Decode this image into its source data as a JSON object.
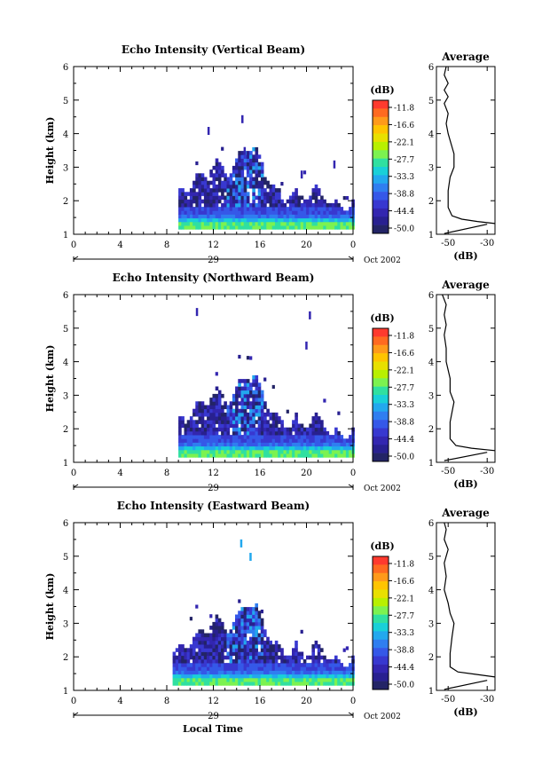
{
  "figure": {
    "date_label": "Oct 2002",
    "day_label": "29",
    "xlabel": "Local Time"
  },
  "chart_data": [
    {
      "type": "heatmap",
      "title": "Echo Intensity (Vertical Beam)",
      "ylabel": "Height (km)",
      "x_ticks": [
        "0",
        "4",
        "8",
        "12",
        "16",
        "20",
        "0"
      ],
      "x_range": [
        0,
        24
      ],
      "y_ticks": [
        "1",
        "2",
        "3",
        "4",
        "5",
        "6"
      ],
      "y_range": [
        1,
        6
      ],
      "data_start_hour": 9,
      "colorbar": {
        "unit": "(dB)",
        "labels": [
          "-11.8",
          "-16.6",
          "-22.1",
          "-27.7",
          "-33.3",
          "-38.8",
          "-44.4",
          "-50.0"
        ],
        "colors": [
          "#ff3a2e",
          "#ff6a20",
          "#ff9a1a",
          "#ffc400",
          "#e8e000",
          "#b8f000",
          "#7cf250",
          "#30e0a0",
          "#19d0d8",
          "#22a8ee",
          "#2f7ef0",
          "#3558e8",
          "#3838d0",
          "#3326b0",
          "#282090",
          "#232466"
        ]
      },
      "profile": {
        "title": "Average",
        "xlabel": "(dB)",
        "x_ticks": [
          "-50",
          "-30"
        ],
        "x_range": [
          -56,
          -26
        ],
        "points": [
          [
            -26,
            1.32
          ],
          [
            -35,
            1.38
          ],
          [
            -43,
            1.45
          ],
          [
            -48,
            1.55
          ],
          [
            -50,
            1.8
          ],
          [
            -50,
            2.3
          ],
          [
            -49,
            2.7
          ],
          [
            -47,
            3.0
          ],
          [
            -47,
            3.4
          ],
          [
            -49,
            3.8
          ],
          [
            -50,
            4.0
          ],
          [
            -51,
            4.3
          ],
          [
            -50,
            4.6
          ],
          [
            -52,
            4.9
          ],
          [
            -50,
            5.1
          ],
          [
            -52,
            5.3
          ],
          [
            -50,
            5.5
          ],
          [
            -52,
            5.75
          ],
          [
            -51,
            6.0
          ]
        ],
        "tail": [
          [
            -52,
            1.02
          ],
          [
            -30,
            1.3
          ]
        ]
      }
    },
    {
      "type": "heatmap",
      "title": "Echo Intensity (Northward Beam)",
      "ylabel": "Height (km)",
      "x_ticks": [
        "0",
        "4",
        "8",
        "12",
        "16",
        "20",
        "0"
      ],
      "x_range": [
        0,
        24
      ],
      "y_ticks": [
        "1",
        "2",
        "3",
        "4",
        "5",
        "6"
      ],
      "y_range": [
        1,
        6
      ],
      "data_start_hour": 9,
      "colorbar": {
        "unit": "(dB)",
        "labels": [
          "-11.8",
          "-16.6",
          "-22.1",
          "-27.7",
          "-33.3",
          "-38.8",
          "-44.4",
          "-50.0"
        ],
        "colors": [
          "#ff3a2e",
          "#ff6a20",
          "#ff9a1a",
          "#ffc400",
          "#e8e000",
          "#b8f000",
          "#7cf250",
          "#30e0a0",
          "#19d0d8",
          "#22a8ee",
          "#2f7ef0",
          "#3558e8",
          "#3838d0",
          "#3326b0",
          "#282090",
          "#232466"
        ]
      },
      "profile": {
        "title": "Average",
        "xlabel": "(dB)",
        "x_ticks": [
          "-50",
          "-30"
        ],
        "x_range": [
          -56,
          -26
        ],
        "points": [
          [
            -26,
            1.35
          ],
          [
            -38,
            1.42
          ],
          [
            -46,
            1.5
          ],
          [
            -49,
            1.7
          ],
          [
            -49,
            2.2
          ],
          [
            -48,
            2.5
          ],
          [
            -47,
            2.8
          ],
          [
            -49,
            3.1
          ],
          [
            -49,
            3.5
          ],
          [
            -51,
            4.0
          ],
          [
            -51,
            4.4
          ],
          [
            -52,
            4.8
          ],
          [
            -51,
            5.1
          ],
          [
            -52,
            5.4
          ],
          [
            -51,
            5.7
          ],
          [
            -53,
            6.0
          ]
        ],
        "tail": [
          [
            -52,
            1.05
          ],
          [
            -30,
            1.3
          ]
        ]
      }
    },
    {
      "type": "heatmap",
      "title": "Echo Intensity (Eastward Beam)",
      "ylabel": "Height (km)",
      "x_ticks": [
        "0",
        "4",
        "8",
        "12",
        "16",
        "20",
        "0"
      ],
      "x_range": [
        0,
        24
      ],
      "y_ticks": [
        "1",
        "2",
        "3",
        "4",
        "5",
        "6"
      ],
      "y_range": [
        1,
        6
      ],
      "data_start_hour": 8.5,
      "colorbar": {
        "unit": "(dB)",
        "labels": [
          "-11.8",
          "-16.6",
          "-22.1",
          "-27.7",
          "-33.3",
          "-38.8",
          "-44.4",
          "-50.0"
        ],
        "colors": [
          "#ff3a2e",
          "#ff6a20",
          "#ff9a1a",
          "#ffc400",
          "#e8e000",
          "#b8f000",
          "#7cf250",
          "#30e0a0",
          "#19d0d8",
          "#22a8ee",
          "#2f7ef0",
          "#3558e8",
          "#3838d0",
          "#3326b0",
          "#282090",
          "#232466"
        ]
      },
      "profile": {
        "title": "Average",
        "xlabel": "(dB)",
        "x_ticks": [
          "-50",
          "-30"
        ],
        "x_range": [
          -56,
          -26
        ],
        "points": [
          [
            -26,
            1.4
          ],
          [
            -36,
            1.48
          ],
          [
            -45,
            1.55
          ],
          [
            -49,
            1.7
          ],
          [
            -49,
            2.1
          ],
          [
            -48,
            2.6
          ],
          [
            -47,
            3.0
          ],
          [
            -49,
            3.3
          ],
          [
            -50,
            3.6
          ],
          [
            -52,
            4.0
          ],
          [
            -51,
            4.4
          ],
          [
            -52,
            4.8
          ],
          [
            -50,
            5.2
          ],
          [
            -52,
            5.5
          ],
          [
            -51,
            5.8
          ],
          [
            -52,
            6.0
          ]
        ],
        "tail": [
          [
            -52,
            1.03
          ],
          [
            -30,
            1.3
          ]
        ]
      }
    }
  ]
}
